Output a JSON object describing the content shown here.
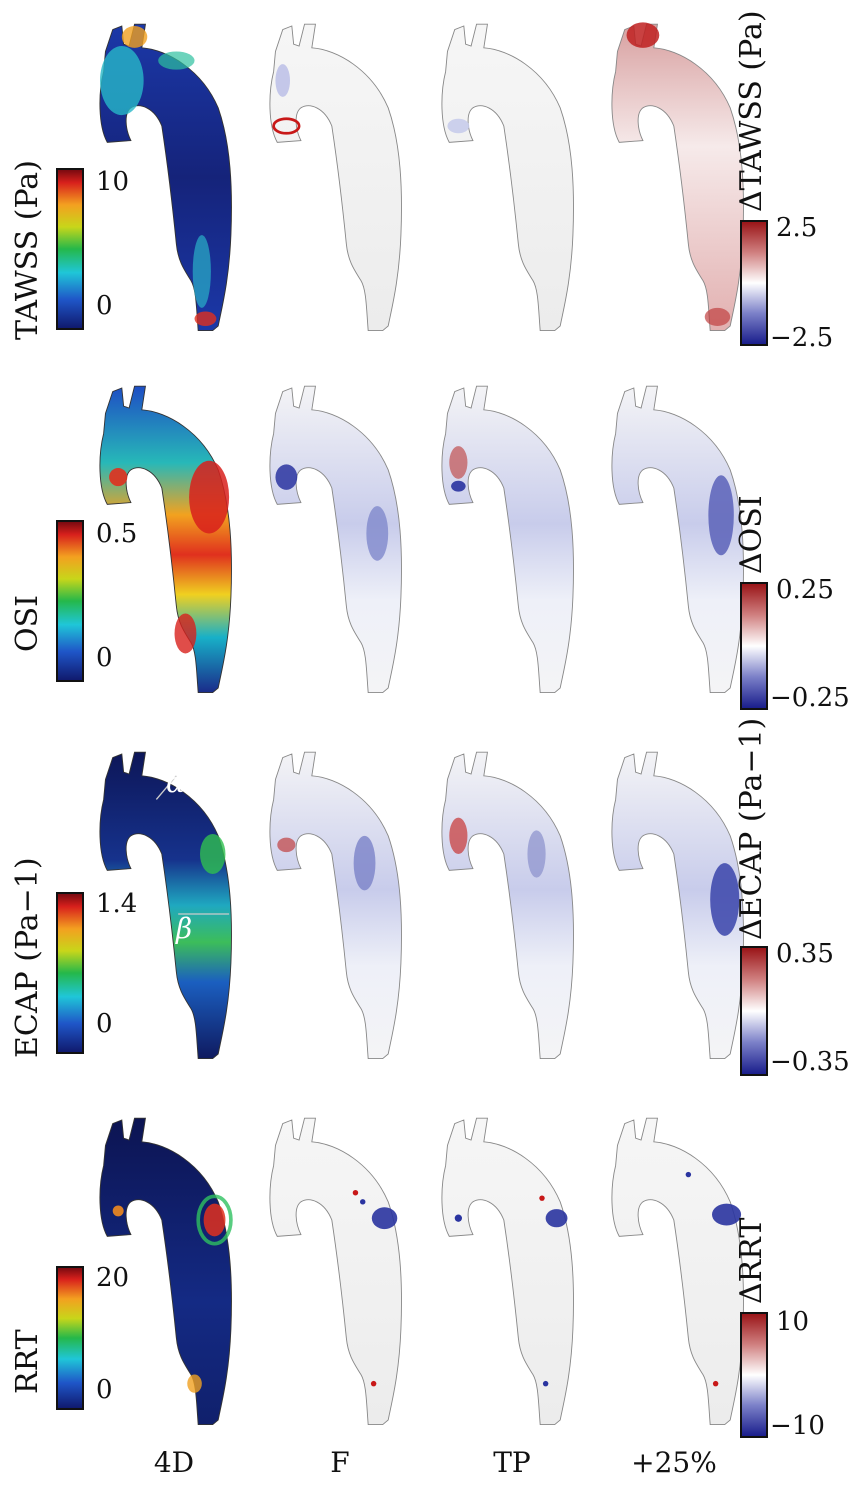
{
  "rows": [
    {
      "label": "TAWSS (Pa)",
      "scale_max": "10",
      "scale_min": "0",
      "delta_label": "ΔTAWSS (Pa)",
      "delta_max": "2.5",
      "delta_min": "−2.5"
    },
    {
      "label": "OSI",
      "scale_max": "0.5",
      "scale_min": "0",
      "delta_label": "ΔOSI",
      "delta_max": "0.25",
      "delta_min": "−0.25"
    },
    {
      "label": "ECAP (Pa−1)",
      "scale_max": "1.4",
      "scale_min": "0",
      "delta_label": "ΔECAP (Pa−1)",
      "delta_max": "0.35",
      "delta_min": "−0.35",
      "marker_alpha": "α",
      "marker_beta": "β"
    },
    {
      "label": "RRT",
      "scale_max": "20",
      "scale_min": "0",
      "delta_label": "ΔRRT",
      "delta_max": "10",
      "delta_min": "−10"
    }
  ],
  "columns": [
    "4D",
    "F",
    "TP",
    "+25%"
  ],
  "colors": {
    "low_blue": "#101a6e",
    "high_red": "#c81818",
    "neutral": "#f4f4f4",
    "outline": "#555555"
  }
}
